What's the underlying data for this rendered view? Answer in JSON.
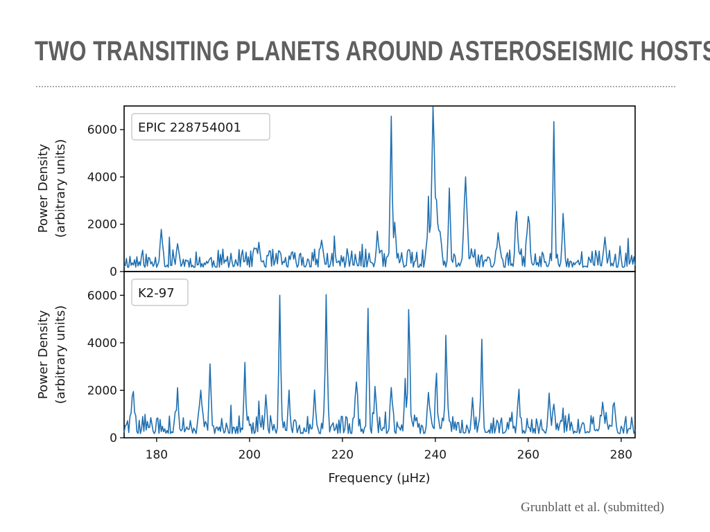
{
  "slide": {
    "title": "TWO TRANSITING PLANETS AROUND ASTEROSEISMIC HOSTS",
    "citation": "Grunblatt et al. (submitted)"
  },
  "colors": {
    "line": "#1f6fb0",
    "axes": "#000000",
    "title": "#5f5f5f"
  },
  "chart_data": [
    {
      "type": "line",
      "legend": "EPIC 228754001",
      "legend_placement": "top-left",
      "ylabel_line1": "Power Density",
      "ylabel_line2": "(arbitrary units)",
      "xlabel": "",
      "xlim": [
        173,
        283
      ],
      "ylim": [
        0,
        7000
      ],
      "yticks": [
        0,
        2000,
        4000,
        6000
      ],
      "grid": false,
      "peaks": [
        {
          "x": 181,
          "y": 1600,
          "w": 0.25
        },
        {
          "x": 184.5,
          "y": 900,
          "w": 0.25
        },
        {
          "x": 202,
          "y": 900,
          "w": 0.25
        },
        {
          "x": 215.5,
          "y": 1100,
          "w": 0.25
        },
        {
          "x": 227.5,
          "y": 1200,
          "w": 0.25
        },
        {
          "x": 230.5,
          "y": 6250,
          "w": 0.2
        },
        {
          "x": 231.3,
          "y": 1850,
          "w": 0.2
        },
        {
          "x": 238.5,
          "y": 1600,
          "w": 0.25
        },
        {
          "x": 239.5,
          "y": 5850,
          "w": 0.28
        },
        {
          "x": 240.3,
          "y": 2000,
          "w": 0.5
        },
        {
          "x": 243,
          "y": 2650,
          "w": 0.2
        },
        {
          "x": 246.5,
          "y": 3350,
          "w": 0.35
        },
        {
          "x": 253.5,
          "y": 1300,
          "w": 0.25
        },
        {
          "x": 257.5,
          "y": 2100,
          "w": 0.25
        },
        {
          "x": 260,
          "y": 2150,
          "w": 0.25
        },
        {
          "x": 265.5,
          "y": 6050,
          "w": 0.2
        },
        {
          "x": 267.5,
          "y": 1700,
          "w": 0.25
        },
        {
          "x": 276.5,
          "y": 1200,
          "w": 0.25
        }
      ]
    },
    {
      "type": "line",
      "legend": "K2-97",
      "legend_placement": "top-left",
      "ylabel_line1": "Power Density",
      "ylabel_line2": "(arbitrary units)",
      "xlabel": "Frequency (μHz)",
      "xlim": [
        173,
        283
      ],
      "ylim": [
        0,
        7000
      ],
      "yticks": [
        0,
        2000,
        4000,
        6000
      ],
      "xticks": [
        180,
        200,
        220,
        240,
        260,
        280
      ],
      "grid": false,
      "peaks": [
        {
          "x": 175,
          "y": 1350,
          "w": 0.25
        },
        {
          "x": 184.5,
          "y": 1350,
          "w": 0.25
        },
        {
          "x": 189.5,
          "y": 1300,
          "w": 0.25
        },
        {
          "x": 191.5,
          "y": 2700,
          "w": 0.2
        },
        {
          "x": 199,
          "y": 2700,
          "w": 0.2
        },
        {
          "x": 203.5,
          "y": 1200,
          "w": 0.25
        },
        {
          "x": 206.5,
          "y": 5650,
          "w": 0.2
        },
        {
          "x": 208.5,
          "y": 1750,
          "w": 0.2
        },
        {
          "x": 214,
          "y": 1400,
          "w": 0.25
        },
        {
          "x": 216.5,
          "y": 5850,
          "w": 0.2
        },
        {
          "x": 223,
          "y": 2150,
          "w": 0.2
        },
        {
          "x": 225.5,
          "y": 4950,
          "w": 0.2
        },
        {
          "x": 227,
          "y": 1300,
          "w": 0.25
        },
        {
          "x": 230.5,
          "y": 1350,
          "w": 0.25
        },
        {
          "x": 233.5,
          "y": 2150,
          "w": 0.2
        },
        {
          "x": 234.3,
          "y": 4950,
          "w": 0.2
        },
        {
          "x": 238.5,
          "y": 1400,
          "w": 0.25
        },
        {
          "x": 240.2,
          "y": 2600,
          "w": 0.2
        },
        {
          "x": 242.3,
          "y": 3600,
          "w": 0.2
        },
        {
          "x": 248,
          "y": 1250,
          "w": 0.25
        },
        {
          "x": 250,
          "y": 3550,
          "w": 0.2
        },
        {
          "x": 258,
          "y": 1100,
          "w": 0.25
        },
        {
          "x": 264.5,
          "y": 1300,
          "w": 0.25
        },
        {
          "x": 265.5,
          "y": 1200,
          "w": 0.25
        },
        {
          "x": 276,
          "y": 1200,
          "w": 0.25
        },
        {
          "x": 278.5,
          "y": 1300,
          "w": 0.25
        }
      ]
    }
  ]
}
